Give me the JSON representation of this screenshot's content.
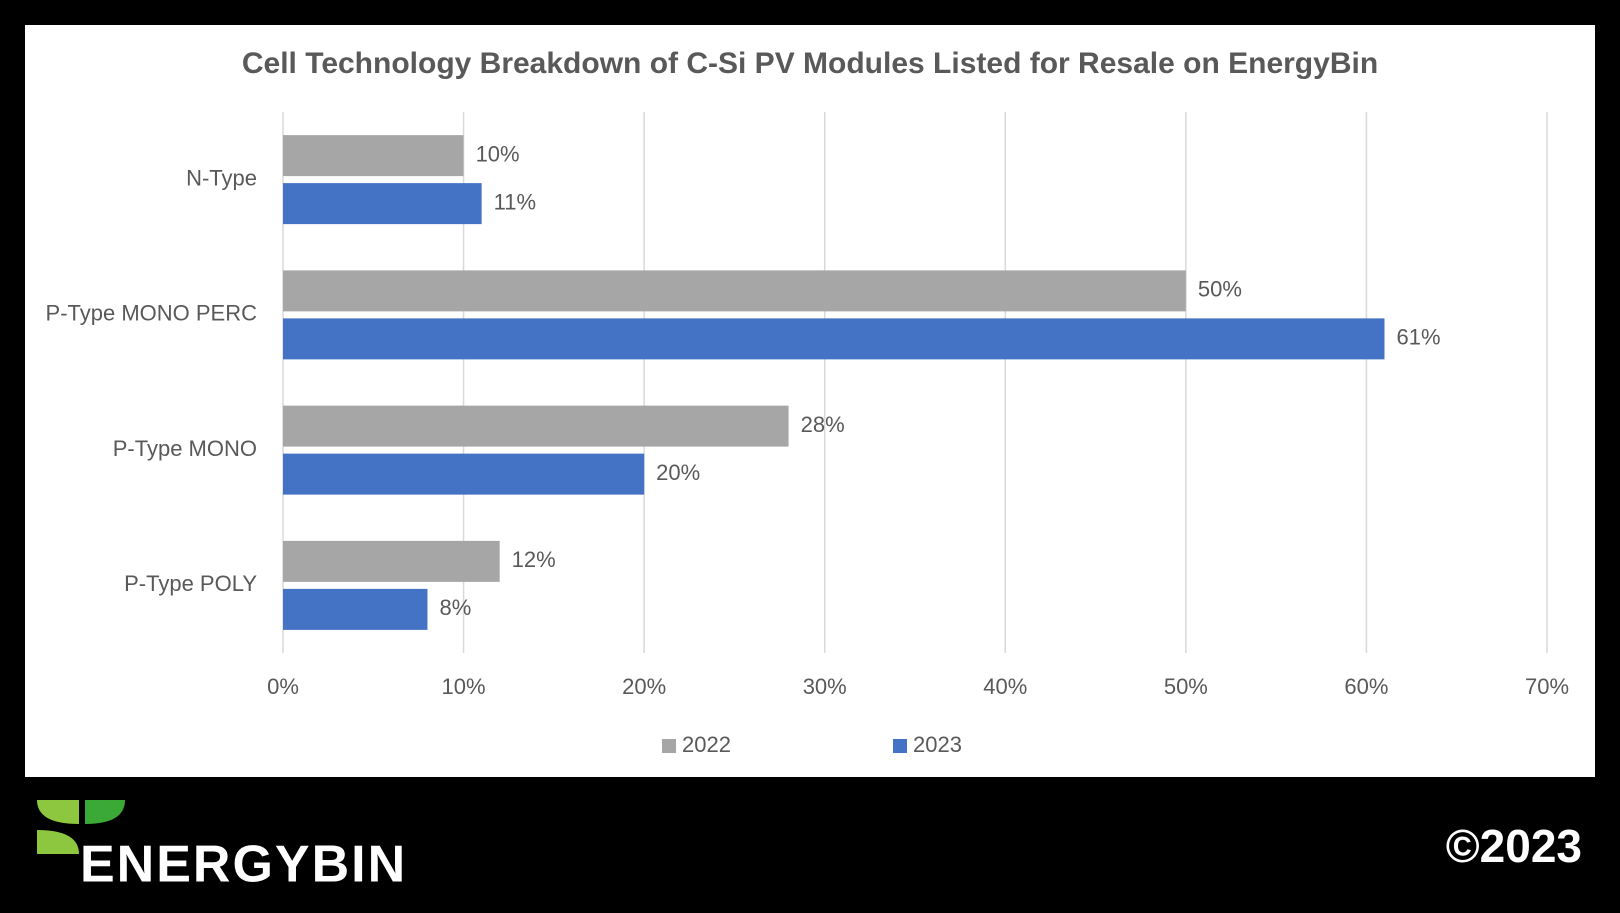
{
  "chart_data": {
    "type": "hbar",
    "title": "Cell Technology Breakdown of C-Si PV Modules Listed for Resale on EnergyBin",
    "categories": [
      "N-Type",
      "P-Type MONO PERC",
      "P-Type MONO",
      "P-Type POLY"
    ],
    "series": [
      {
        "name": "2022",
        "color": "#a6a6a6",
        "values": [
          10,
          50,
          28,
          12
        ],
        "value_labels": [
          "10%",
          "50%",
          "28%",
          "12%"
        ]
      },
      {
        "name": "2023",
        "color": "#4472c4",
        "values": [
          11,
          61,
          20,
          8
        ],
        "value_labels": [
          "11%",
          "61%",
          "20%",
          "8%"
        ]
      }
    ],
    "xlim": [
      0,
      70
    ],
    "xticks": [
      {
        "value": 0,
        "label": "0%"
      },
      {
        "value": 10,
        "label": "10%"
      },
      {
        "value": 20,
        "label": "20%"
      },
      {
        "value": 30,
        "label": "30%"
      },
      {
        "value": 40,
        "label": "40%"
      },
      {
        "value": 50,
        "label": "50%"
      },
      {
        "value": 60,
        "label": "60%"
      },
      {
        "value": 70,
        "label": "70%"
      }
    ],
    "grid": true,
    "legend": "bottom"
  },
  "logo": "ENERGYBIN",
  "copyright": "©2023"
}
